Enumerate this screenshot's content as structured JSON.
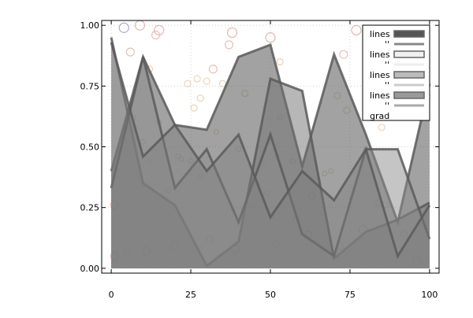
{
  "chart_data": {
    "type": "area",
    "title": "",
    "xlabel": "",
    "ylabel": "",
    "xlim": [
      -3,
      103
    ],
    "ylim": [
      -0.02,
      1.02
    ],
    "xticks": [
      0,
      25,
      50,
      75,
      100
    ],
    "xtick_labels": [
      "0",
      "25",
      "50",
      "75",
      "100"
    ],
    "yticks": [
      0,
      0.25,
      0.5,
      0.75,
      1.0
    ],
    "ytick_labels": [
      "0.00",
      "0.25",
      "0.50",
      "0.75",
      "1.00"
    ],
    "grid": true,
    "legend_placement": "top-right",
    "x": [
      0,
      10,
      20,
      30,
      40,
      50,
      60,
      70,
      80,
      90,
      100
    ],
    "series": [
      {
        "name": "lines",
        "color": "#555555",
        "opacity": 0.55,
        "values": [
          0.4,
          0.87,
          0.59,
          0.57,
          0.87,
          0.92,
          0.42,
          0.88,
          0.55,
          0.19,
          0.76
        ]
      },
      {
        "name": "lines",
        "color": "#6f6f6f",
        "opacity": 0.5,
        "values": [
          0.95,
          0.35,
          0.26,
          0.01,
          0.11,
          0.78,
          0.73,
          0.04,
          0.15,
          0.2,
          0.27
        ]
      },
      {
        "name": "lines",
        "color": "#8c8c8c",
        "opacity": 0.5,
        "values": [
          0.33,
          0.87,
          0.33,
          0.49,
          0.19,
          0.55,
          0.14,
          0.05,
          0.49,
          0.49,
          0.12
        ]
      },
      {
        "name": "lines",
        "color": "#7c7c7c",
        "opacity": 0.45,
        "values": [
          0.93,
          0.46,
          0.59,
          0.4,
          0.55,
          0.21,
          0.4,
          0.28,
          0.49,
          0.05,
          0.26
        ]
      }
    ],
    "legend_entries": [
      {
        "label": "lines",
        "sub": "''",
        "swatch": "#555555",
        "line": "#888888"
      },
      {
        "label": "lines",
        "sub": "''",
        "swatch": "#f0f0f0",
        "line": "#eeeeee"
      },
      {
        "label": "lines",
        "sub": "''",
        "swatch": "#bbbbbb",
        "line": "#cccccc"
      },
      {
        "label": "lines",
        "sub": "''",
        "swatch": "#999999",
        "line": "#aaaaaa"
      },
      {
        "label": "grad"
      }
    ],
    "scatter_points": [
      {
        "x": 4,
        "y": 0.99,
        "s": 6,
        "c": "#b6a6c8"
      },
      {
        "x": 9,
        "y": 1.0,
        "s": 6,
        "c": "#e4b4b4"
      },
      {
        "x": 15,
        "y": 0.98,
        "s": 6,
        "c": "#e4b4b4"
      },
      {
        "x": 14,
        "y": 0.96,
        "s": 5,
        "c": "#e8c0b8"
      },
      {
        "x": 38,
        "y": 0.97,
        "s": 6,
        "c": "#e4b4b4"
      },
      {
        "x": 50,
        "y": 0.95,
        "s": 6,
        "c": "#e4b4b4"
      },
      {
        "x": 77,
        "y": 0.98,
        "s": 6,
        "c": "#e4b4b4"
      },
      {
        "x": 37,
        "y": 0.92,
        "s": 5,
        "c": "#e8c0b8"
      },
      {
        "x": 6,
        "y": 0.89,
        "s": 5,
        "c": "#e8c0b8"
      },
      {
        "x": 73,
        "y": 0.88,
        "s": 5,
        "c": "#e8c0b8"
      },
      {
        "x": 53,
        "y": 0.85,
        "s": 4,
        "c": "#ead0b8"
      },
      {
        "x": 12,
        "y": 0.82,
        "s": 4,
        "c": "#ead0b8"
      },
      {
        "x": 32,
        "y": 0.82,
        "s": 5,
        "c": "#e8c0b8"
      },
      {
        "x": 24,
        "y": 0.76,
        "s": 4,
        "c": "#ead6b8"
      },
      {
        "x": 27,
        "y": 0.78,
        "s": 4,
        "c": "#ead6b8"
      },
      {
        "x": 30,
        "y": 0.77,
        "s": 4,
        "c": "#ead6b8"
      },
      {
        "x": 35,
        "y": 0.76,
        "s": 4,
        "c": "#ead6b8"
      },
      {
        "x": 42,
        "y": 0.72,
        "s": 4,
        "c": "#ead6b8"
      },
      {
        "x": 28,
        "y": 0.7,
        "s": 4,
        "c": "#ead6b8"
      },
      {
        "x": 26,
        "y": 0.66,
        "s": 4,
        "c": "#ead6b8"
      },
      {
        "x": 71,
        "y": 0.71,
        "s": 4,
        "c": "#ead6b8"
      },
      {
        "x": 74,
        "y": 0.65,
        "s": 4,
        "c": "#ead6b8"
      },
      {
        "x": 7,
        "y": 0.62,
        "s": 3,
        "c": "#ead6b8"
      },
      {
        "x": 15,
        "y": 0.6,
        "s": 3,
        "c": "#ead6b8"
      },
      {
        "x": 33,
        "y": 0.56,
        "s": 3,
        "c": "#ead6b8"
      },
      {
        "x": 10,
        "y": 0.52,
        "s": 3,
        "c": "#d8d8d8"
      },
      {
        "x": 12,
        "y": 0.44,
        "s": 3,
        "c": "#e0e0e0"
      },
      {
        "x": 21,
        "y": 0.46,
        "s": 3,
        "c": "#e0e0e0"
      },
      {
        "x": 22,
        "y": 0.45,
        "s": 3,
        "c": "#e0e0e0"
      },
      {
        "x": 25,
        "y": 0.44,
        "s": 3,
        "c": "#e0e0e0"
      },
      {
        "x": 28,
        "y": 0.38,
        "s": 3,
        "c": "#e0e0e0"
      },
      {
        "x": 40,
        "y": 0.49,
        "s": 3,
        "c": "#e0e0e0"
      },
      {
        "x": 48,
        "y": 0.43,
        "s": 3,
        "c": "#e0e0e0"
      },
      {
        "x": 52,
        "y": 0.46,
        "s": 3,
        "c": "#e0e0e0"
      },
      {
        "x": 57,
        "y": 0.44,
        "s": 3,
        "c": "#e0e0e0"
      },
      {
        "x": 53,
        "y": 0.62,
        "s": 3,
        "c": "#ead6b8"
      },
      {
        "x": 69,
        "y": 0.4,
        "s": 3,
        "c": "#e0e0e0"
      },
      {
        "x": 67,
        "y": 0.39,
        "s": 3,
        "c": "#ead6b8"
      },
      {
        "x": 85,
        "y": 0.58,
        "s": 4,
        "c": "#ead6b8"
      },
      {
        "x": 80,
        "y": 0.49,
        "s": 3,
        "c": "#e0e0e0"
      },
      {
        "x": 94,
        "y": 0.63,
        "s": 4,
        "c": "#ead6b8"
      },
      {
        "x": 98,
        "y": 0.7,
        "s": 4,
        "c": "#ead6b8"
      },
      {
        "x": 18,
        "y": 0.32,
        "s": 3,
        "c": "#ead6b8"
      },
      {
        "x": 46,
        "y": 0.35,
        "s": 3,
        "c": "#ead6b8"
      },
      {
        "x": 49,
        "y": 0.31,
        "s": 3,
        "c": "#ead6b8"
      },
      {
        "x": 58,
        "y": 0.2,
        "s": 4,
        "c": "#ead6b8"
      },
      {
        "x": 63,
        "y": 0.3,
        "s": 4,
        "c": "#ead6b8"
      },
      {
        "x": 44,
        "y": 0.26,
        "s": 4,
        "c": "#ead6b8"
      },
      {
        "x": 84,
        "y": 0.27,
        "s": 4,
        "c": "#ead6b8"
      },
      {
        "x": 86,
        "y": 0.26,
        "s": 4,
        "c": "#ead6b8"
      },
      {
        "x": 1,
        "y": 0.26,
        "s": 5,
        "c": "#e8c0b8"
      },
      {
        "x": 62,
        "y": 0.14,
        "s": 4,
        "c": "#ead6b8"
      },
      {
        "x": 79,
        "y": 0.16,
        "s": 5,
        "c": "#e8c0b8"
      },
      {
        "x": 92,
        "y": 0.14,
        "s": 4,
        "c": "#ead6b8"
      },
      {
        "x": 31,
        "y": 0.12,
        "s": 4,
        "c": "#ead6b8"
      },
      {
        "x": 20,
        "y": 0.09,
        "s": 5,
        "c": "#e8c0b8"
      },
      {
        "x": 39,
        "y": 0.08,
        "s": 5,
        "c": "#e8c0b8"
      },
      {
        "x": 11,
        "y": 0.07,
        "s": 5,
        "c": "#e8c0b8"
      },
      {
        "x": 1,
        "y": 0.05,
        "s": 5,
        "c": "#e8c0b8"
      },
      {
        "x": 5,
        "y": 0.07,
        "s": 4,
        "c": "#ead6b8"
      },
      {
        "x": 52,
        "y": 0.1,
        "s": 4,
        "c": "#ead6b8"
      },
      {
        "x": 72,
        "y": 0.09,
        "s": 4,
        "c": "#ead6b8"
      },
      {
        "x": 96,
        "y": 0.03,
        "s": 5,
        "c": "#e8c0b8"
      }
    ]
  }
}
